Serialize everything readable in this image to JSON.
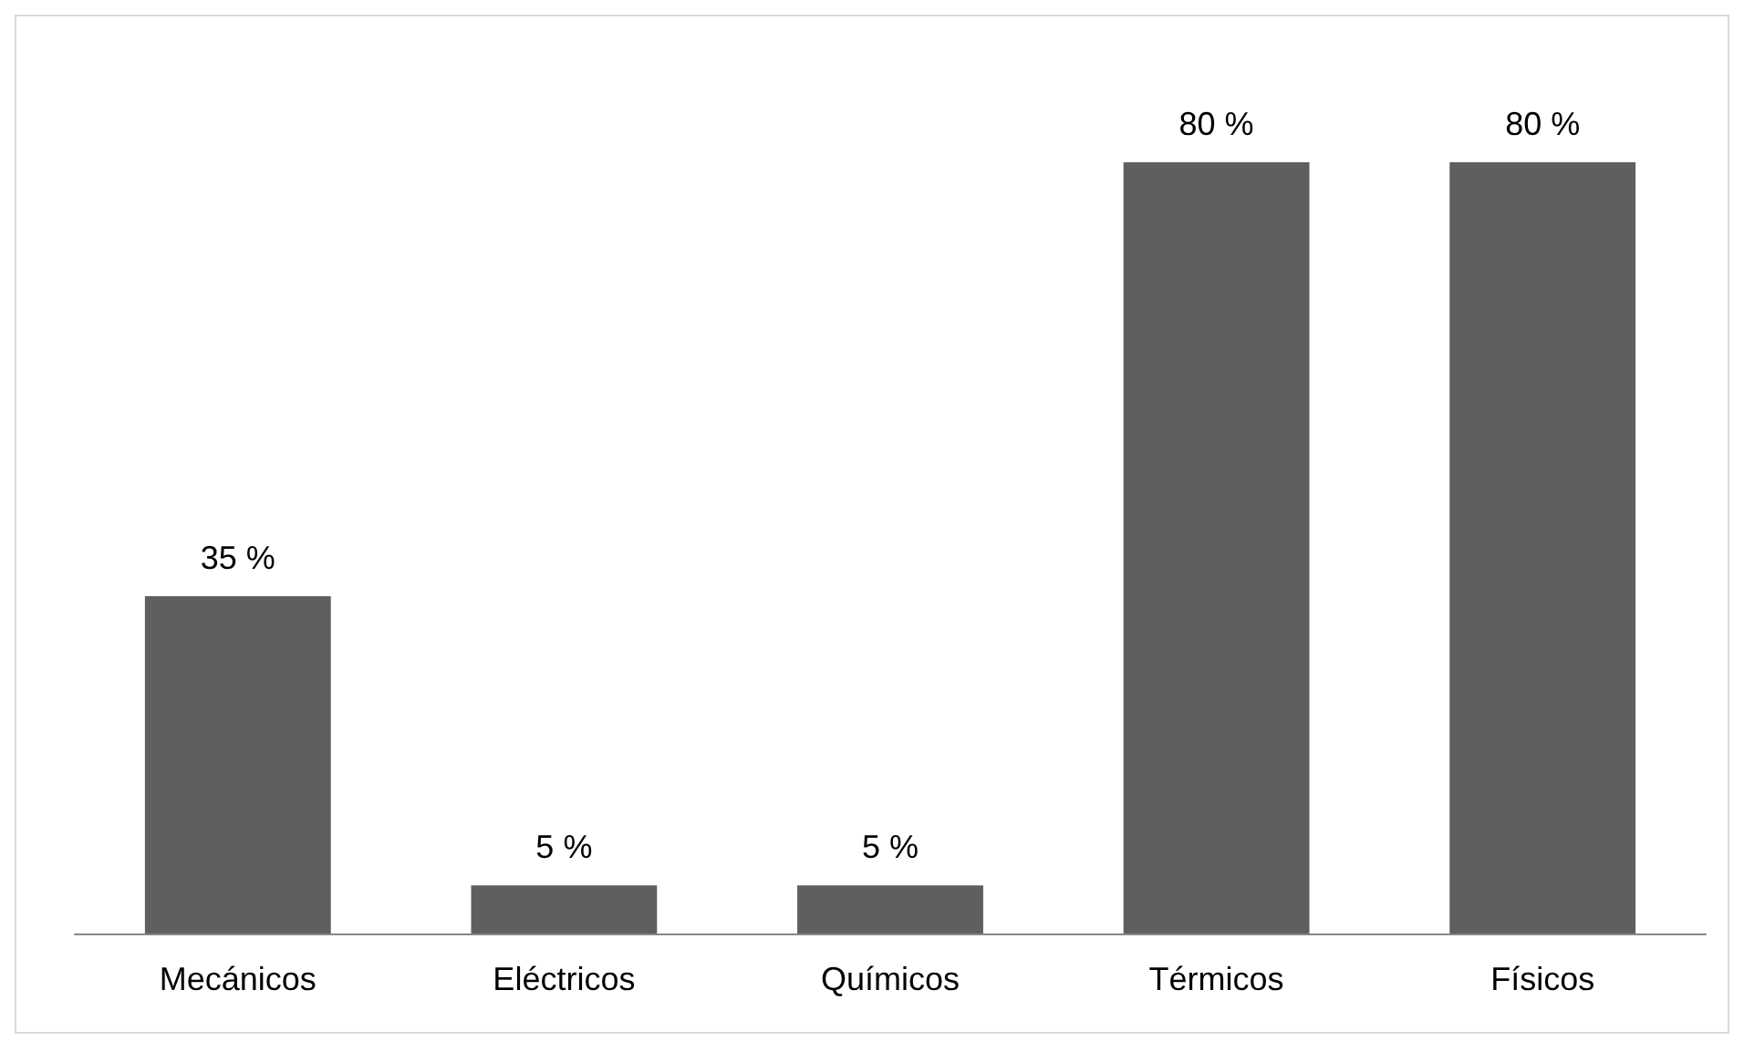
{
  "chart_data": {
    "type": "bar",
    "categories": [
      "Mecánicos",
      "Eléctricos",
      "Químicos",
      "Térmicos",
      "Físicos"
    ],
    "values": [
      35,
      5,
      5,
      80,
      80
    ],
    "value_labels": [
      "35 %",
      "5 %",
      "5 %",
      "80 %",
      "80 %"
    ],
    "color": "#5f5f5f"
  }
}
